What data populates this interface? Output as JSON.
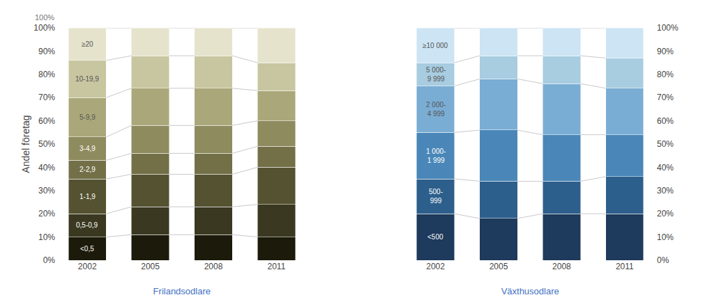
{
  "chart_data": [
    {
      "type": "bar",
      "stacked": true,
      "grid": false,
      "x_label": "Frilandsodlare",
      "y_label": "Andel företag",
      "annotations": [
        {
          "text": "100%"
        }
      ],
      "categories": [
        "2002",
        "2005",
        "2008",
        "2011"
      ],
      "ylim": [
        0,
        100
      ],
      "yticks": [
        {
          "value": 0,
          "label": "0%"
        },
        {
          "value": 10,
          "label": "10%"
        },
        {
          "value": 20,
          "label": "20%"
        },
        {
          "value": 30,
          "label": "30%"
        },
        {
          "value": 40,
          "label": "40%"
        },
        {
          "value": 50,
          "label": "50%"
        },
        {
          "value": 60,
          "label": "60%"
        },
        {
          "value": 70,
          "label": "70%"
        },
        {
          "value": 80,
          "label": "80%"
        },
        {
          "value": 90,
          "label": "90%"
        },
        {
          "value": 100,
          "label": "100%"
        }
      ],
      "series": [
        {
          "name": "<0,5",
          "color": "#1c1a0a",
          "values": [
            10,
            11,
            11,
            10
          ]
        },
        {
          "name": "0,5-0,9",
          "color": "#3a3820",
          "values": [
            10,
            12,
            12,
            14
          ]
        },
        {
          "name": "1-1,9",
          "color": "#545230",
          "values": [
            15,
            14,
            14,
            16
          ]
        },
        {
          "name": "2-2,9",
          "color": "#737048",
          "values": [
            8,
            9,
            9,
            9
          ]
        },
        {
          "name": "3-4,9",
          "color": "#8e8b5e",
          "values": [
            10,
            12,
            12,
            11
          ]
        },
        {
          "name": "5-9,9",
          "color": "#aaa87a",
          "values": [
            17,
            16,
            16,
            13
          ]
        },
        {
          "name": "10-19,9",
          "color": "#c8c6a0",
          "values": [
            16,
            14,
            14,
            12
          ]
        },
        {
          "name": "≥20",
          "color": "#e5e3cc",
          "values": [
            14,
            12,
            12,
            15
          ]
        }
      ]
    },
    {
      "type": "bar",
      "stacked": true,
      "grid": false,
      "x_label": "Växthusodlare",
      "categories": [
        "2002",
        "2005",
        "2008",
        "2011"
      ],
      "ylim": [
        0,
        100
      ],
      "yticks": [
        {
          "value": 0,
          "label": "0%"
        },
        {
          "value": 10,
          "label": "10%"
        },
        {
          "value": 20,
          "label": "20%"
        },
        {
          "value": 30,
          "label": "30%"
        },
        {
          "value": 40,
          "label": "40%"
        },
        {
          "value": 50,
          "label": "50%"
        },
        {
          "value": 60,
          "label": "60%"
        },
        {
          "value": 70,
          "label": "70%"
        },
        {
          "value": 80,
          "label": "80%"
        },
        {
          "value": 90,
          "label": "90%"
        },
        {
          "value": 100,
          "label": "100%"
        }
      ],
      "series": [
        {
          "name": "<500",
          "color": "#1e3a5c",
          "values": [
            20,
            18,
            20,
            20
          ]
        },
        {
          "name": "500-\n999",
          "color": "#2d5f8c",
          "values": [
            15,
            16,
            14,
            16
          ]
        },
        {
          "name": "1 000-\n1 999",
          "color": "#4a87b8",
          "values": [
            20,
            22,
            20,
            18
          ]
        },
        {
          "name": "2 000-\n4 999",
          "color": "#7aadd4",
          "values": [
            20,
            22,
            22,
            20
          ]
        },
        {
          "name": "5 000-\n9 999",
          "color": "#a8cce0",
          "values": [
            10,
            10,
            12,
            13
          ]
        },
        {
          "name": "≥10 000",
          "color": "#cce4f4",
          "values": [
            15,
            12,
            12,
            13
          ]
        }
      ]
    }
  ]
}
